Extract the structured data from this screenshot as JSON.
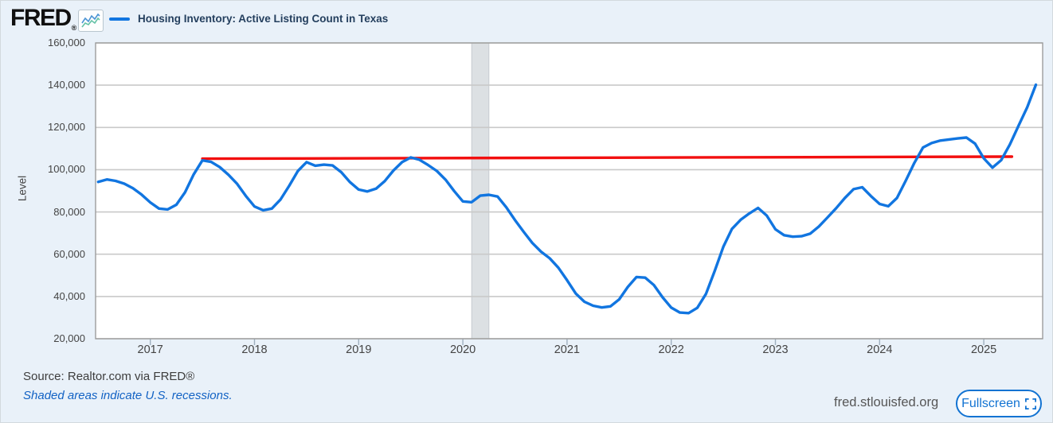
{
  "header": {
    "logo_text": "FRED",
    "logo_registered_mark": "®",
    "legend_label": "Housing Inventory: Active Listing Count in Texas"
  },
  "footer": {
    "source_text": "Source: Realtor.com via FRED®",
    "recessions_note": "Shaded areas indicate U.S. recessions.",
    "site_url": "fred.stlouisfed.org",
    "fullscreen_label": "Fullscreen"
  },
  "colors": {
    "background": "#e9f1f9",
    "plot_background": "#ffffff",
    "series_blue": "#1175e0",
    "reference_red": "#f20f0f",
    "gridline": "#c9c9c9",
    "plot_border": "#9c9c9c",
    "recession_band": "#dce0e3",
    "recession_band_edge": "#c6cbd0",
    "x_tick_mark": "#9fb0bf",
    "accent_blue": "#1273d2",
    "note_blue": "#1262c4",
    "title_navy": "#243f5e",
    "axis_text": "#444444"
  },
  "chart_data": {
    "type": "line",
    "title": "Housing Inventory: Active Listing Count in Texas",
    "ylabel": "Level",
    "ylim": [
      20000,
      160000
    ],
    "x_range": [
      2016.475,
      2025.565
    ],
    "grid": "horizontal",
    "legend_position": "top-left",
    "y_ticks": [
      {
        "value": 160000,
        "label": "160,000"
      },
      {
        "value": 140000,
        "label": "140,000"
      },
      {
        "value": 120000,
        "label": "120,000"
      },
      {
        "value": 100000,
        "label": "100,000"
      },
      {
        "value": 80000,
        "label": "80,000"
      },
      {
        "value": 60000,
        "label": "60,000"
      },
      {
        "value": 40000,
        "label": "40,000"
      },
      {
        "value": 20000,
        "label": "20,000"
      }
    ],
    "x_ticks": [
      {
        "year": 2017,
        "label": "2017"
      },
      {
        "year": 2018,
        "label": "2018"
      },
      {
        "year": 2019,
        "label": "2019"
      },
      {
        "year": 2020,
        "label": "2020"
      },
      {
        "year": 2021,
        "label": "2021"
      },
      {
        "year": 2022,
        "label": "2022"
      },
      {
        "year": 2023,
        "label": "2023"
      },
      {
        "year": 2024,
        "label": "2024"
      },
      {
        "year": 2025,
        "label": "2025"
      }
    ],
    "series": [
      {
        "name": "Housing Inventory: Active Listing Count in Texas",
        "frequency": "monthly",
        "start": "2016-07",
        "end": "2025-07",
        "color": "#1175e0",
        "values": [
          94200,
          95400,
          94700,
          93400,
          91200,
          88200,
          84500,
          81600,
          81200,
          83400,
          89300,
          97800,
          104400,
          103700,
          101200,
          97600,
          93300,
          87600,
          82600,
          80800,
          81600,
          85900,
          92400,
          99400,
          103600,
          101900,
          102400,
          102000,
          98800,
          94100,
          90600,
          89700,
          91000,
          94600,
          99600,
          103600,
          105800,
          104700,
          102200,
          99400,
          95300,
          89900,
          85000,
          84600,
          87700,
          88100,
          87300,
          82200,
          76200,
          70600,
          65300,
          61200,
          58100,
          53600,
          47700,
          41400,
          37500,
          35600,
          34800,
          35300,
          38600,
          44500,
          49200,
          48900,
          45400,
          39600,
          34700,
          32400,
          32100,
          34600,
          41200,
          52000,
          63500,
          72000,
          76300,
          79300,
          81900,
          78300,
          71800,
          69000,
          68300,
          68500,
          69700,
          73100,
          77400,
          81800,
          86600,
          90800,
          91700,
          87500,
          83800,
          82700,
          86600,
          94700,
          103200,
          110500,
          112600,
          113800,
          114300,
          114800,
          115200,
          112300,
          105400,
          101000,
          104500,
          111900,
          120800,
          129500,
          140200
        ]
      }
    ],
    "reference_line": {
      "color": "#f20f0f",
      "x_start": 2017.5,
      "x_end": 2025.27,
      "value_start": 105200,
      "value_end": 106200
    },
    "recession_bands": [
      {
        "x_start": 2020.085,
        "x_end": 2020.25
      }
    ]
  }
}
